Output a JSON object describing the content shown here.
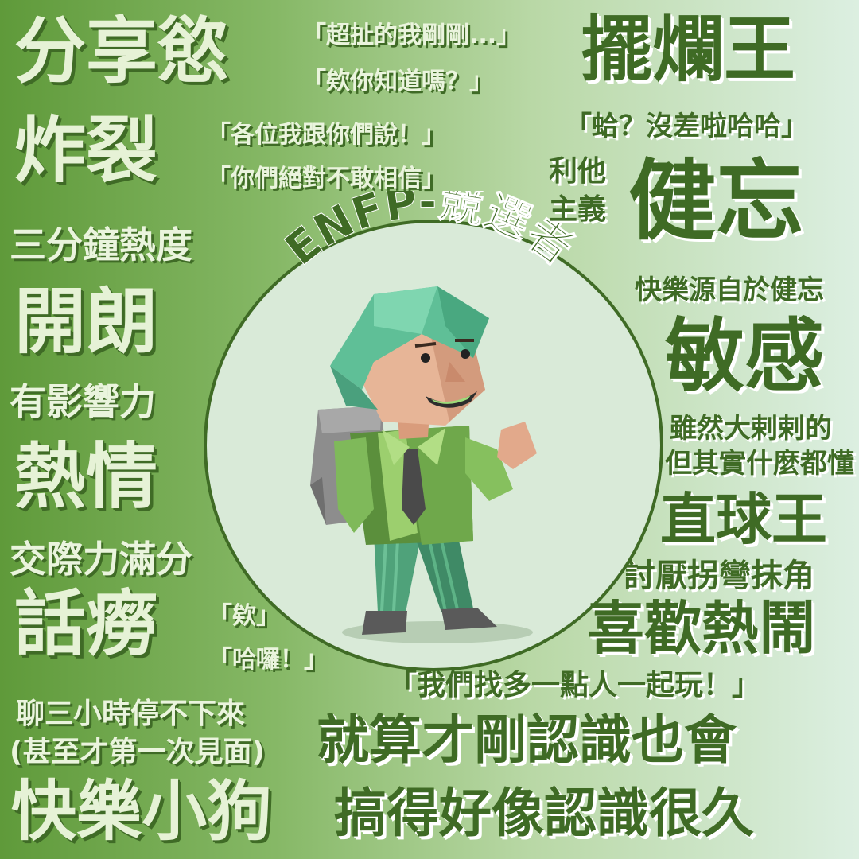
{
  "left": {
    "share_desire": "分享慾",
    "quote_1": "「超扯的我剛剛...」",
    "quote_2": "「欸你知道嗎？」",
    "explode": "炸裂",
    "quote_3": "「各位我跟你們說！」",
    "quote_4": "「你們絕對不敢相信」",
    "three_minute": "三分鐘熱度",
    "cheerful": "開朗",
    "influential": "有影響力",
    "passion": "熱情",
    "social_full": "交際力滿分",
    "talkative": "話癆",
    "quote_hey": "「欸」",
    "quote_hello": "「哈囉！」",
    "chat_nonstop": "聊三小時停不下來",
    "first_meet": "(甚至才第一次見面)",
    "happy_dog": "快樂小狗"
  },
  "right": {
    "slacker_king": "擺爛王",
    "quote_whatever": "「蛤？沒差啦哈哈」",
    "altruism_line1": "利他",
    "altruism_line2": "主義",
    "forgetful": "健忘",
    "happiness_source": "快樂源自於健忘",
    "sensitive": "敏感",
    "seems_careless": "雖然大剌剌的",
    "understands_all": "但其實什麼都懂",
    "straight_king": "直球王",
    "hates_beating": "討厭拐彎抹角",
    "likes_lively": "喜歡熱鬧",
    "quote_more_people": "「我們找多一點人一起玩！」",
    "just_met_line1": "就算才剛認識也會",
    "just_met_line2": "搞得好像認識很久"
  },
  "center": {
    "title": "ENFP-競選者"
  },
  "colors": {
    "dark_green": "#3f6b25",
    "light_text": "#e6f2d6",
    "circle_fill": "#d9ead8"
  },
  "icons": {
    "figure": "cartoon-campaigner-character"
  }
}
